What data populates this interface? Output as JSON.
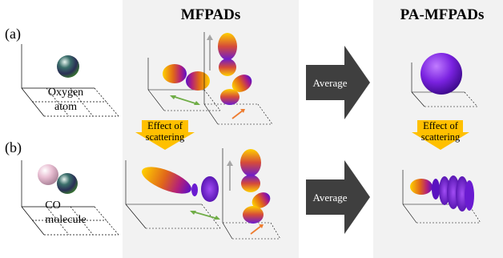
{
  "headings": {
    "mfpads": "MFPADs",
    "pa_mfpads": "PA-MFPADs"
  },
  "row_labels": {
    "a": "(a)",
    "b": "(b)"
  },
  "row_a": {
    "target_label_line1": "Oxygen",
    "target_label_line2": "atom",
    "arrow_label": "Average"
  },
  "row_b": {
    "target_label_line1": "CO",
    "target_label_line2": "molecule",
    "arrow_label": "Average"
  },
  "scattering_notes": {
    "left_line1": "Effect of",
    "left_line2": "scattering",
    "right_line1": "Effect of",
    "right_line2": "scattering"
  },
  "colors": {
    "panel_bg": "#f2f2f2",
    "big_arrow": "#3f3f3f",
    "scatter_arrow": "#ffc000",
    "green_arrow": "#70ad47",
    "orange_arrow": "#ed7d31",
    "gray_arrow": "#a6a6a6",
    "lobe_gold": "#f5b400",
    "lobe_violet": "#6a1bd1",
    "oxygen_sphere": "#2a3a3a",
    "carbon_sphere": "#e8c3d4"
  }
}
